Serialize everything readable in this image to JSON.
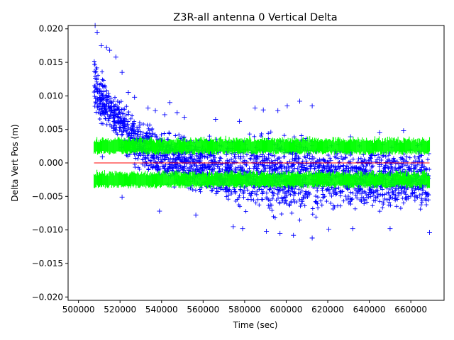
{
  "chart_data": {
    "type": "scatter",
    "title": "Z3R-all antenna 0 Vertical Delta",
    "xlabel": "Time (sec)",
    "ylabel": "Delta Vert Pos (m)",
    "xlim": [
      495000,
      676000
    ],
    "ylim": [
      -0.0205,
      0.0205
    ],
    "x_ticks": [
      500000,
      520000,
      540000,
      560000,
      580000,
      600000,
      620000,
      640000,
      660000
    ],
    "y_ticks": [
      -0.02,
      -0.015,
      -0.01,
      -0.005,
      0.0,
      0.005,
      0.01,
      0.015,
      0.02
    ],
    "x_tick_labels": [
      "500000",
      "520000",
      "540000",
      "560000",
      "580000",
      "600000",
      "620000",
      "640000",
      "660000"
    ],
    "y_tick_labels": [
      "−0.020",
      "−0.015",
      "−0.010",
      "−0.005",
      "0.000",
      "0.005",
      "0.010",
      "0.015",
      "0.020"
    ],
    "grid": false,
    "time_range": [
      507500,
      669000
    ],
    "series": [
      {
        "marker": "+",
        "color": "#0000ff",
        "envelope": {
          "x": [
            507500,
            510000,
            515000,
            520000,
            525000,
            530000,
            540000,
            550000,
            560000,
            570000,
            580000,
            590000,
            600000,
            610000,
            620000,
            630000,
            640000,
            650000,
            660000,
            669000
          ],
          "upper": [
            0.0185,
            0.0155,
            0.0125,
            0.0105,
            0.009,
            0.0075,
            0.0062,
            0.0052,
            0.0048,
            0.0046,
            0.0052,
            0.0055,
            0.0058,
            0.0056,
            0.0042,
            0.004,
            0.004,
            0.0038,
            0.004,
            0.0038
          ],
          "lower": [
            0.006,
            0.0045,
            0.003,
            0.0015,
            -0.001,
            -0.0025,
            -0.004,
            -0.005,
            -0.006,
            -0.0075,
            -0.0085,
            -0.009,
            -0.0095,
            -0.0095,
            -0.0085,
            -0.008,
            -0.008,
            -0.008,
            -0.0085,
            -0.009
          ]
        },
        "outliers": [
          [
            508000,
            0.0205
          ],
          [
            509000,
            0.0195
          ],
          [
            511000,
            0.0175
          ],
          [
            513500,
            0.0172
          ],
          [
            515000,
            0.0168
          ],
          [
            518000,
            0.0158
          ],
          [
            521000,
            0.0135
          ],
          [
            524000,
            0.0105
          ],
          [
            527000,
            0.0098
          ],
          [
            533500,
            0.0082
          ],
          [
            537000,
            0.0078
          ],
          [
            541500,
            0.0072
          ],
          [
            544000,
            0.009
          ],
          [
            547500,
            0.0075
          ],
          [
            551000,
            0.0068
          ],
          [
            566000,
            0.0065
          ],
          [
            577500,
            0.0062
          ],
          [
            585000,
            0.0082
          ],
          [
            589000,
            0.0079
          ],
          [
            596000,
            0.0078
          ],
          [
            600500,
            0.0085
          ],
          [
            606500,
            0.0092
          ],
          [
            612500,
            0.0085
          ],
          [
            631000,
            0.0039
          ],
          [
            645000,
            0.0045
          ],
          [
            656500,
            0.0048
          ],
          [
            612500,
            -0.0112
          ],
          [
            669000,
            -0.0104
          ],
          [
            603500,
            -0.0108
          ],
          [
            597000,
            -0.0105
          ],
          [
            579000,
            -0.0098
          ],
          [
            556500,
            -0.0078
          ],
          [
            521000,
            -0.0051
          ],
          [
            511500,
            0.0009
          ],
          [
            650000,
            -0.0098
          ],
          [
            632000,
            -0.0098
          ],
          [
            574500,
            -0.0095
          ],
          [
            590500,
            -0.0102
          ],
          [
            620500,
            -0.0099
          ],
          [
            539000,
            -0.0072
          ]
        ]
      },
      {
        "marker": "band",
        "color": "#00ff00",
        "upper_band": [
          0.0015,
          0.0035
        ],
        "lower_band": [
          -0.0035,
          -0.0015
        ]
      },
      {
        "marker": "line",
        "color": "#ff0000",
        "x": [
          507500,
          669000
        ],
        "values": [
          0.0,
          0.0
        ]
      }
    ]
  }
}
